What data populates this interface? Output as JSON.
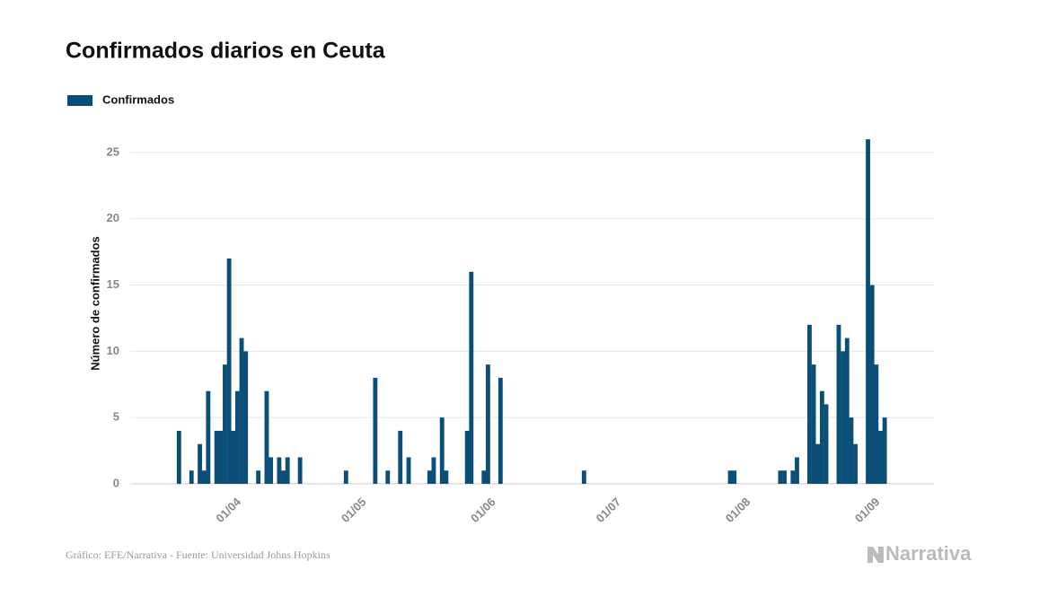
{
  "chart_data": {
    "type": "bar",
    "title": "Confirmados diarios en Ceuta",
    "y_label": "Número de confirmados",
    "source": "Gráfico: EFE/Narrativa - Fuente: Universidad Johns Hopkins",
    "logo": "Narrativa",
    "series": [
      {
        "name": "Confirmados",
        "color": "#0b4f78",
        "values": [
          0,
          0,
          0,
          4,
          0,
          0,
          1,
          0,
          3,
          1,
          7,
          0,
          4,
          4,
          9,
          17,
          4,
          7,
          11,
          10,
          0,
          0,
          1,
          0,
          7,
          2,
          0,
          2,
          1,
          2,
          0,
          0,
          2,
          0,
          0,
          0,
          0,
          0,
          0,
          0,
          0,
          0,
          0,
          1,
          0,
          0,
          0,
          0,
          0,
          0,
          8,
          0,
          0,
          1,
          0,
          0,
          4,
          0,
          2,
          0,
          0,
          0,
          0,
          1,
          2,
          0,
          5,
          1,
          0,
          0,
          0,
          0,
          4,
          16,
          0,
          0,
          1,
          9,
          0,
          0,
          8,
          0,
          0,
          0,
          0,
          0,
          0,
          0,
          0,
          0,
          0,
          0,
          0,
          0,
          0,
          0,
          0,
          0,
          0,
          0,
          1,
          0,
          0,
          0,
          0,
          0,
          0,
          0,
          0,
          0,
          0,
          0,
          0,
          0,
          0,
          0,
          0,
          0,
          0,
          0,
          0,
          0,
          0,
          0,
          0,
          0,
          0,
          0,
          0,
          0,
          0,
          0,
          0,
          0,
          0,
          1,
          1,
          0,
          0,
          0,
          0,
          0,
          0,
          0,
          0,
          0,
          0,
          1,
          1,
          0,
          1,
          2,
          0,
          0,
          12,
          9,
          3,
          7,
          6,
          0,
          0,
          12,
          10,
          11,
          5,
          3,
          0,
          0,
          26,
          15,
          9,
          4,
          5,
          0,
          0,
          0
        ]
      }
    ],
    "categories": [
      null,
      null,
      null,
      null,
      null,
      null,
      null,
      null,
      null,
      null,
      null,
      null,
      null,
      null,
      null,
      "01/04",
      null,
      null,
      null,
      null,
      null,
      null,
      null,
      null,
      null,
      null,
      null,
      null,
      null,
      null,
      null,
      null,
      null,
      null,
      null,
      null,
      null,
      null,
      null,
      null,
      null,
      null,
      null,
      null,
      null,
      "01/05",
      null,
      null,
      null,
      null,
      null,
      null,
      null,
      null,
      null,
      null,
      null,
      null,
      null,
      null,
      null,
      null,
      null,
      null,
      null,
      null,
      null,
      null,
      null,
      null,
      null,
      null,
      null,
      null,
      null,
      null,
      "01/06",
      null,
      null,
      null,
      null,
      null,
      null,
      null,
      null,
      null,
      null,
      null,
      null,
      null,
      null,
      null,
      null,
      null,
      null,
      null,
      null,
      null,
      null,
      null,
      null,
      null,
      null,
      null,
      null,
      null,
      "01/07",
      null,
      null,
      null,
      null,
      null,
      null,
      null,
      null,
      null,
      null,
      null,
      null,
      null,
      null,
      null,
      null,
      null,
      null,
      null,
      null,
      null,
      null,
      null,
      null,
      null,
      null,
      null,
      null,
      null,
      null,
      "01/08",
      null,
      null,
      null,
      null,
      null,
      null,
      null,
      null,
      null,
      null,
      null,
      null,
      null,
      null,
      null,
      null,
      null,
      null,
      null,
      null,
      null,
      null,
      null,
      null,
      null,
      null,
      null,
      null,
      null,
      null,
      "01/09",
      null,
      null,
      null,
      null,
      null,
      null,
      null
    ],
    "ylim": [
      0,
      27.5
    ],
    "yticks": [
      0,
      5,
      10,
      15,
      20,
      25
    ],
    "grid": true,
    "legend": "top-left"
  }
}
